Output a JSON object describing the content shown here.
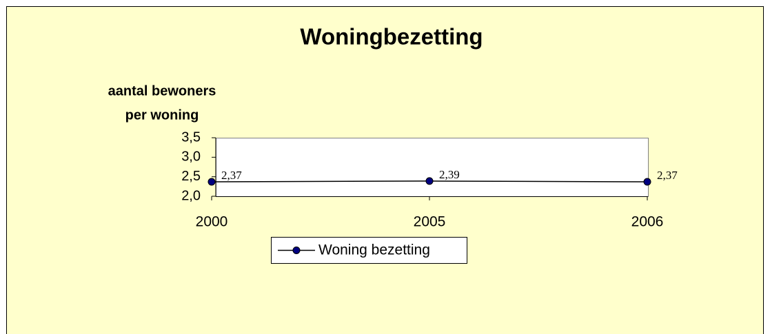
{
  "chart_data": {
    "type": "line",
    "title": "Woningbezetting",
    "y_label": [
      "aantal bewoners",
      "per woning"
    ],
    "categories": [
      "2000",
      "2005",
      "2006"
    ],
    "series": [
      {
        "name": "Woning bezetting",
        "color": "#000080",
        "values": [
          2.37,
          2.39,
          2.37
        ],
        "value_labels": [
          "2,37",
          "2,39",
          "2,37"
        ]
      }
    ],
    "ylim": [
      2.0,
      3.5
    ],
    "yticks": [
      {
        "value": 2.0,
        "label": "2,0"
      },
      {
        "value": 2.5,
        "label": "2,5"
      },
      {
        "value": 3.0,
        "label": "3,0"
      },
      {
        "value": 3.5,
        "label": "3,5"
      }
    ],
    "legend": "bottom"
  }
}
